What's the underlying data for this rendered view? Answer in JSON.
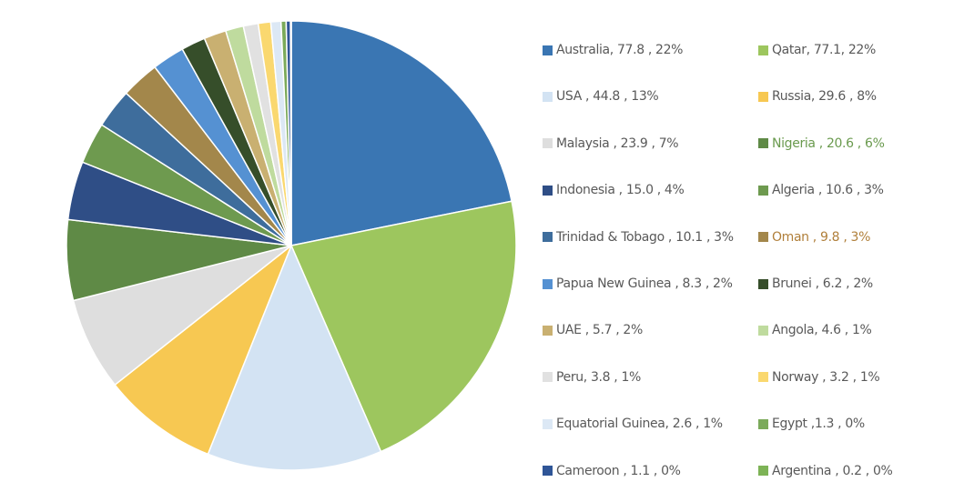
{
  "chart_data": {
    "type": "pie",
    "title": "",
    "legend_position": "right",
    "slices": [
      {
        "name": "Australia",
        "value": 77.8,
        "percent": "22%",
        "label": "Australia, 77.8 , 22%",
        "color": "#3A76B3"
      },
      {
        "name": "Qatar",
        "value": 77.1,
        "percent": "22%",
        "label": "Qatar, 77.1, 22%",
        "color": "#9DC65E",
        "label_color": "#595959"
      },
      {
        "name": "USA",
        "value": 44.8,
        "percent": "13%",
        "label": "USA , 44.8 , 13%",
        "color": "#D3E3F3"
      },
      {
        "name": "Russia",
        "value": 29.6,
        "percent": "8%",
        "label": "Russia, 29.6 , 8%",
        "color": "#F7C852"
      },
      {
        "name": "Malaysia",
        "value": 23.9,
        "percent": "7%",
        "label": "Malaysia , 23.9 , 7%",
        "color": "#DEDEDE"
      },
      {
        "name": "Nigeria",
        "value": 20.6,
        "percent": "6%",
        "label": "Nigeria , 20.6 , 6%",
        "color": "#5F8A46",
        "label_color": "#6A9A4E"
      },
      {
        "name": "Indonesia",
        "value": 15.0,
        "percent": "4%",
        "label": "Indonesia , 15.0 , 4%",
        "color": "#2F4E86"
      },
      {
        "name": "Algeria",
        "value": 10.6,
        "percent": "3%",
        "label": "Algeria , 10.6 , 3%",
        "color": "#6E9A4F"
      },
      {
        "name": "Trinidad & Tobago",
        "value": 10.1,
        "percent": "3%",
        "label": "Trinidad & Tobago , 10.1 , 3%",
        "color": "#3E6D9C"
      },
      {
        "name": "Oman",
        "value": 9.8,
        "percent": "3%",
        "label": "Oman , 9.8 , 3%",
        "color": "#A3874B",
        "label_color": "#B07F3A"
      },
      {
        "name": "Papua New Guinea",
        "value": 8.3,
        "percent": "2%",
        "label": "Papua New Guinea , 8.3 , 2%",
        "color": "#5591D2"
      },
      {
        "name": "Brunei",
        "value": 6.2,
        "percent": "2%",
        "label": "Brunei , 6.2 , 2%",
        "color": "#364E2A"
      },
      {
        "name": "UAE",
        "value": 5.7,
        "percent": "2%",
        "label": "UAE , 5.7 , 2%",
        "color": "#C9B071"
      },
      {
        "name": "Angola",
        "value": 4.6,
        "percent": "1%",
        "label": "Angola, 4.6 , 1%",
        "color": "#BFDB9E"
      },
      {
        "name": "Peru",
        "value": 3.8,
        "percent": "1%",
        "label": "Peru, 3.8 , 1%",
        "color": "#E1E1E1"
      },
      {
        "name": "Norway",
        "value": 3.2,
        "percent": "1%",
        "label": "Norway , 3.2 , 1%",
        "color": "#FAD86F"
      },
      {
        "name": "Equatorial Guinea",
        "value": 2.6,
        "percent": "1%",
        "label": "Equatorial Guinea, 2.6 , 1%",
        "color": "#DCE8F5"
      },
      {
        "name": "Egypt",
        "value": 1.3,
        "percent": "0%",
        "label": "Egypt ,1.3 , 0%",
        "color": "#7BAA5A"
      },
      {
        "name": "Cameroon",
        "value": 1.1,
        "percent": "0%",
        "label": "Cameroon , 1.1 , 0%",
        "color": "#2F5597"
      },
      {
        "name": "Argentina",
        "value": 0.2,
        "percent": "0%",
        "label": "Argentina , 0.2 , 0%",
        "color": "#7DB356"
      }
    ]
  }
}
